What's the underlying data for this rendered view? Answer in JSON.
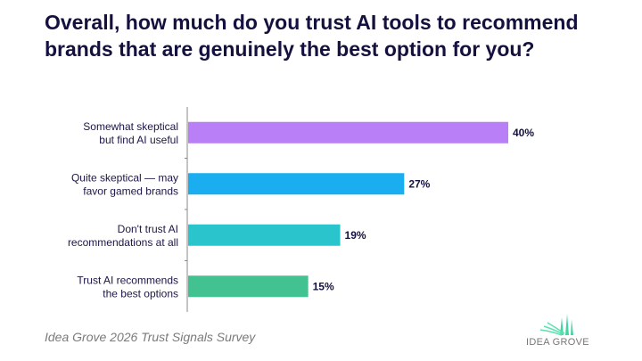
{
  "title": "Overall, how much do you trust AI tools to recommend brands that are genuinely the best option for you?",
  "source": "Idea Grove 2026 Trust Signals Survey",
  "logo": {
    "text": "IDEA GROVE"
  },
  "chart_data": {
    "type": "bar",
    "orientation": "horizontal",
    "title": "Overall, how much do you trust AI tools to recommend brands that are genuinely the best option for you?",
    "categories": [
      [
        "Somewhat skeptical",
        "but find AI useful"
      ],
      [
        "Quite skeptical — may",
        "favor gamed brands"
      ],
      [
        "Don't trust AI",
        "recommendations at all"
      ],
      [
        "Trust AI recommends",
        "the best options"
      ]
    ],
    "values": [
      40,
      27,
      19,
      15
    ],
    "labels": [
      "40%",
      "27%",
      "19%",
      "15%"
    ],
    "colors": [
      "#b87ff6",
      "#1aaef0",
      "#2ac5cc",
      "#41c290"
    ],
    "xlim": [
      0,
      40
    ],
    "grid": false
  }
}
